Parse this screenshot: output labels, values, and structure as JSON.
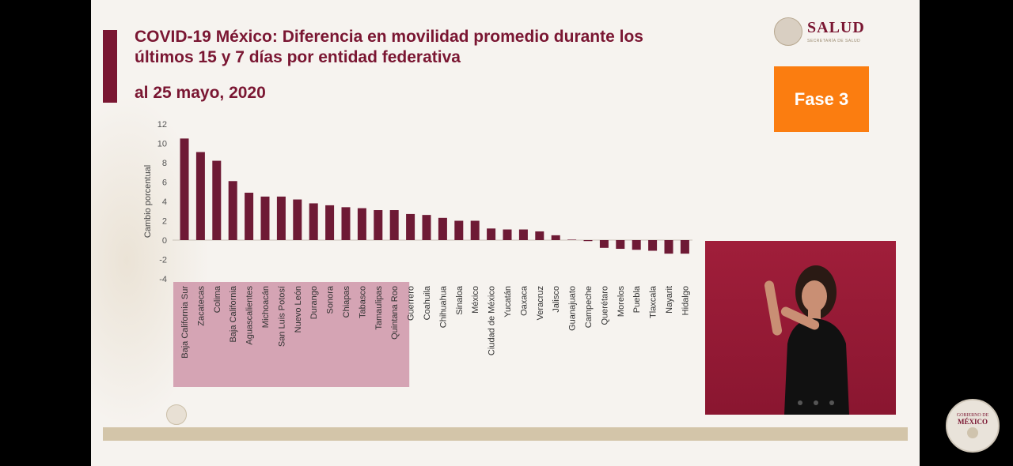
{
  "header": {
    "title": "COVID-19 México: Diferencia en movilidad promedio durante los últimos 15 y 7 días por entidad federativa",
    "subtitle": "al 25 mayo, 2020"
  },
  "logo": {
    "text": "SALUD",
    "sub": "SECRETARÍA DE SALUD"
  },
  "badge": {
    "label": "Fase 3"
  },
  "footer_logo": {
    "line1": "GOBIERNO DE",
    "line2": "MÉXICO"
  },
  "colors": {
    "accent": "#7a1632",
    "bar": "#6e1a35",
    "badge": "#fb7d10",
    "highlight": "#c98aa0"
  },
  "chart_data": {
    "type": "bar",
    "title": "",
    "xlabel": "",
    "ylabel": "Cambio porcentual",
    "ylim": [
      -4,
      12
    ],
    "yticks": [
      12,
      10,
      8,
      6,
      4,
      2,
      0,
      -2,
      -4
    ],
    "grid": false,
    "highlighted_count": 14,
    "categories": [
      "Baja California Sur",
      "Zacatecas",
      "Colima",
      "Baja California",
      "Aguascalientes",
      "Michoacán",
      "San Luis Potosí",
      "Nuevo León",
      "Durango",
      "Sonora",
      "Chiapas",
      "Tabasco",
      "Tamaulipas",
      "Quintana Roo",
      "Guerrero",
      "Coahuila",
      "Chihuahua",
      "Sinaloa",
      "México",
      "Ciudad de México",
      "Yucatán",
      "Oaxaca",
      "Veracruz",
      "Jalisco",
      "Guanajuato",
      "Campeche",
      "Querétaro",
      "Morelos",
      "Puebla",
      "Tlaxcala",
      "Nayarit",
      "Hidalgo"
    ],
    "values": [
      10.5,
      9.1,
      8.2,
      6.1,
      4.9,
      4.5,
      4.5,
      4.2,
      3.8,
      3.6,
      3.4,
      3.3,
      3.1,
      3.1,
      2.7,
      2.6,
      2.3,
      2.0,
      2.0,
      1.2,
      1.1,
      1.1,
      0.9,
      0.5,
      0.05,
      -0.1,
      -0.8,
      -0.9,
      -1.0,
      -1.1,
      -1.4,
      -1.4
    ]
  }
}
